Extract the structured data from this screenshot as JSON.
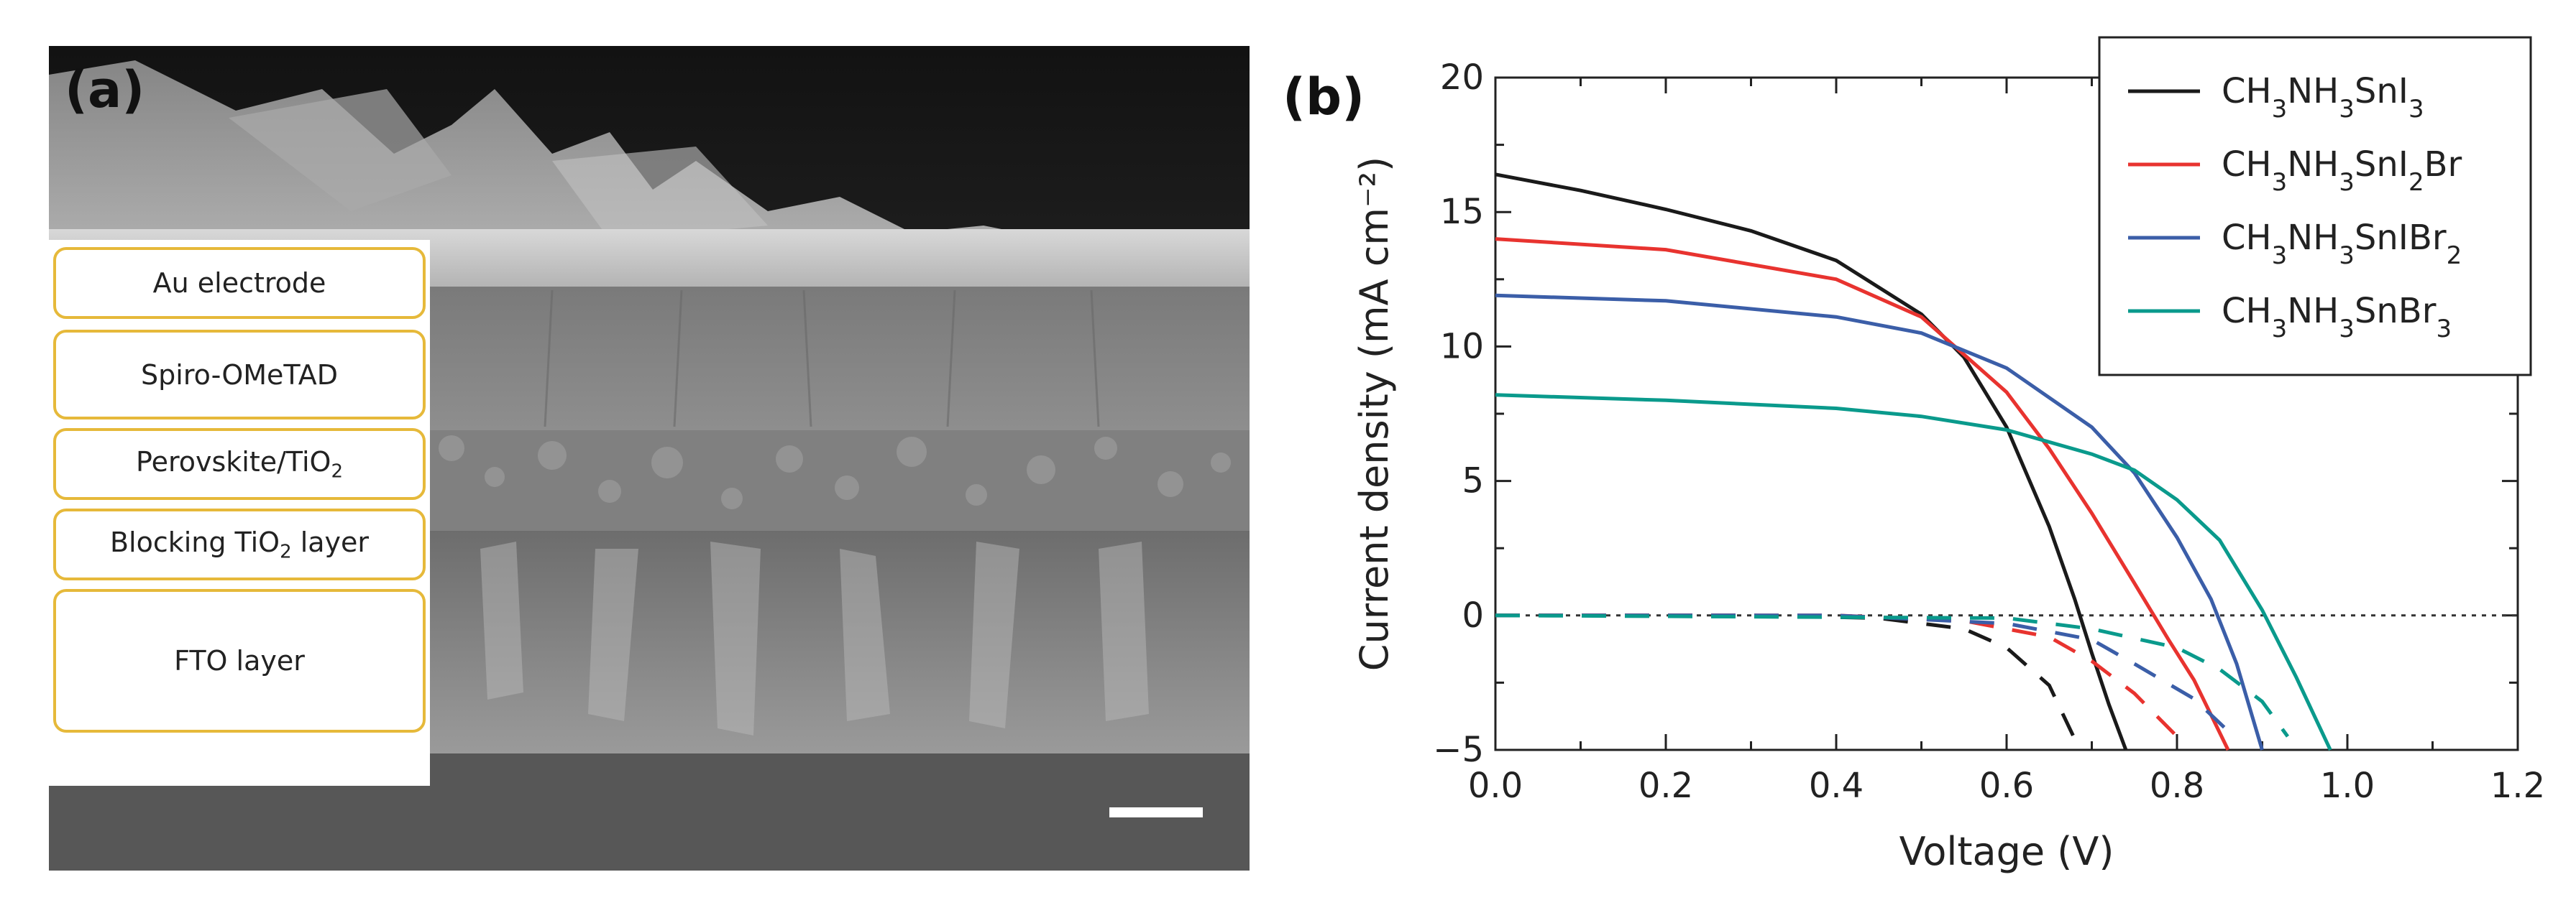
{
  "panel_a": {
    "label": "(a)",
    "layers": [
      {
        "text": "Au electrode"
      },
      {
        "text": "Spiro-OMeTAD"
      },
      {
        "text": "Perovskite/TiO",
        "sub": "2",
        "after": ""
      },
      {
        "text": "Blocking TiO",
        "sub": "2",
        "after": " layer"
      },
      {
        "text": "FTO layer"
      }
    ],
    "colors": {
      "box_border": "#e6b93a"
    }
  },
  "panel_b": {
    "label": "(b)"
  },
  "chart_data": {
    "type": "line",
    "title": "",
    "xlabel": "Voltage (V)",
    "ylabel": "Current density (mA cm⁻²)",
    "xlim": [
      0.0,
      1.2
    ],
    "ylim": [
      -5,
      20
    ],
    "x_ticks": [
      "0.0",
      "0.2",
      "0.4",
      "0.6",
      "0.8",
      "1.0",
      "1.2"
    ],
    "y_ticks": [
      "−5",
      "0",
      "5",
      "10",
      "15",
      "20"
    ],
    "legend_position": "top-right",
    "series": [
      {
        "name": "CH3NH3SnI3",
        "legend": [
          "CH",
          "3",
          "NH",
          "3",
          "SnI",
          "3",
          ""
        ],
        "color": "#1a1a1a",
        "light": {
          "x": [
            0.0,
            0.1,
            0.2,
            0.3,
            0.4,
            0.5,
            0.55,
            0.6,
            0.65,
            0.68,
            0.7,
            0.72,
            0.74
          ],
          "y": [
            16.4,
            15.8,
            15.1,
            14.3,
            13.2,
            11.2,
            9.6,
            7.0,
            3.3,
            0.6,
            -1.4,
            -3.3,
            -5.0
          ]
        },
        "dark": {
          "x": [
            0.0,
            0.3,
            0.45,
            0.55,
            0.6,
            0.65,
            0.68
          ],
          "y": [
            0.0,
            0.0,
            -0.1,
            -0.5,
            -1.2,
            -2.6,
            -4.6
          ]
        }
      },
      {
        "name": "CH3NH3SnI2Br",
        "legend": [
          "CH",
          "3",
          "NH",
          "3",
          "SnI",
          "2",
          "Br"
        ],
        "color": "#e8332f",
        "light": {
          "x": [
            0.0,
            0.2,
            0.4,
            0.5,
            0.6,
            0.65,
            0.7,
            0.75,
            0.79,
            0.82,
            0.86
          ],
          "y": [
            14.0,
            13.6,
            12.5,
            11.1,
            8.3,
            6.2,
            3.8,
            1.2,
            -0.9,
            -2.4,
            -5.0
          ]
        },
        "dark": {
          "x": [
            0.0,
            0.4,
            0.55,
            0.65,
            0.7,
            0.75,
            0.8
          ],
          "y": [
            0.0,
            0.0,
            -0.2,
            -0.8,
            -1.7,
            -2.9,
            -4.5
          ]
        }
      },
      {
        "name": "CH3NH3SnIBr2",
        "legend": [
          "CH",
          "3",
          "NH",
          "3",
          "SnIBr",
          "2",
          ""
        ],
        "color": "#3b5ea8",
        "light": {
          "x": [
            0.0,
            0.2,
            0.4,
            0.5,
            0.6,
            0.7,
            0.75,
            0.8,
            0.84,
            0.87,
            0.9
          ],
          "y": [
            11.9,
            11.7,
            11.1,
            10.5,
            9.2,
            7.0,
            5.3,
            2.9,
            0.6,
            -1.8,
            -5.0
          ]
        },
        "dark": {
          "x": [
            0.0,
            0.4,
            0.6,
            0.7,
            0.75,
            0.82,
            0.87
          ],
          "y": [
            0.0,
            0.0,
            -0.3,
            -0.9,
            -1.8,
            -3.1,
            -4.6
          ]
        }
      },
      {
        "name": "CH3NH3SnBr3",
        "legend": [
          "CH",
          "3",
          "NH",
          "3",
          "SnBr",
          "3",
          ""
        ],
        "color": "#0a9a8c",
        "light": {
          "x": [
            0.0,
            0.2,
            0.4,
            0.5,
            0.6,
            0.7,
            0.75,
            0.8,
            0.85,
            0.9,
            0.94,
            0.98
          ],
          "y": [
            8.2,
            8.0,
            7.7,
            7.4,
            6.9,
            6.0,
            5.4,
            4.3,
            2.8,
            0.2,
            -2.3,
            -5.0
          ]
        },
        "dark": {
          "x": [
            0.0,
            0.6,
            0.7,
            0.8,
            0.85,
            0.9,
            0.93
          ],
          "y": [
            0.0,
            -0.1,
            -0.5,
            -1.2,
            -2.0,
            -3.2,
            -4.5
          ]
        }
      }
    ]
  }
}
